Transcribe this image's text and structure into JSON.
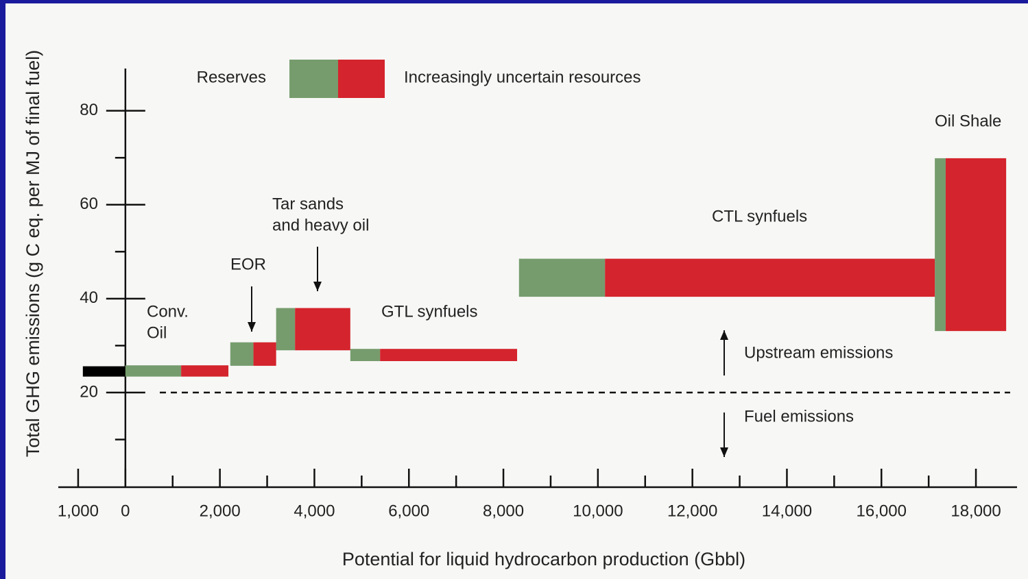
{
  "chart_data": {
    "type": "floating-bar",
    "xlabel": "Potential for liquid hydrocarbon production (Gbbl)",
    "ylabel": "Total GHG emissions (g C eq. per MJ of final fuel)",
    "xlim": [
      -1420,
      18870
    ],
    "ylim": [
      0,
      89
    ],
    "xticks": [
      {
        "value": -1000,
        "label": "1,000"
      },
      0,
      {
        "value": 2000,
        "label": "2,000"
      },
      {
        "value": 4000,
        "label": "4,000"
      },
      {
        "value": 6000,
        "label": "6,000"
      },
      {
        "value": 8000,
        "label": "8,000"
      },
      {
        "value": 10000,
        "label": "10,000"
      },
      {
        "value": 12000,
        "label": "12,000"
      },
      {
        "value": 14000,
        "label": "14,000"
      },
      {
        "value": 16000,
        "label": "16,000"
      },
      {
        "value": 18000,
        "label": "18,000"
      }
    ],
    "xticks_minor": [
      1000,
      3000,
      5000,
      7000,
      9000,
      11000,
      13000,
      15000,
      17000
    ],
    "yticks": [
      20,
      40,
      60,
      80
    ],
    "yticks_minor": [
      10,
      30,
      50,
      70
    ],
    "categories": [
      [
        "Conv.",
        "Oil"
      ],
      [
        "EOR"
      ],
      [
        "Tar sands",
        "and heavy oil"
      ],
      [
        "GTL synfuels"
      ],
      [
        "CTL synfuels"
      ],
      [
        "Oil Shale"
      ]
    ],
    "low": [
      23.4,
      25.7,
      29.0,
      26.7,
      40.4,
      33.1
    ],
    "high": [
      25.8,
      30.7,
      38.0,
      29.3,
      48.5,
      69.9
    ],
    "series": [
      {
        "name": "Reserves",
        "color": "#769c6e",
        "x0": [
          0,
          2220,
          3190,
          4760,
          8330,
          17130
        ],
        "x1": [
          1180,
          2710,
          3590,
          5390,
          10150,
          17360
        ]
      },
      {
        "name": "Increasingly uncertain resources",
        "color": "#d4242d",
        "x0": [
          1180,
          2710,
          3590,
          5390,
          10150,
          17360
        ],
        "x1": [
          2180,
          3190,
          4760,
          8290,
          17130,
          18640
        ]
      }
    ],
    "produced": {
      "color": "#000000",
      "x0": -900,
      "x1": 0,
      "low": 23.4,
      "high": 25.6
    },
    "fuel_emissions_line": 20,
    "annotations": [
      "Upstream emissions",
      "Fuel emissions"
    ]
  }
}
